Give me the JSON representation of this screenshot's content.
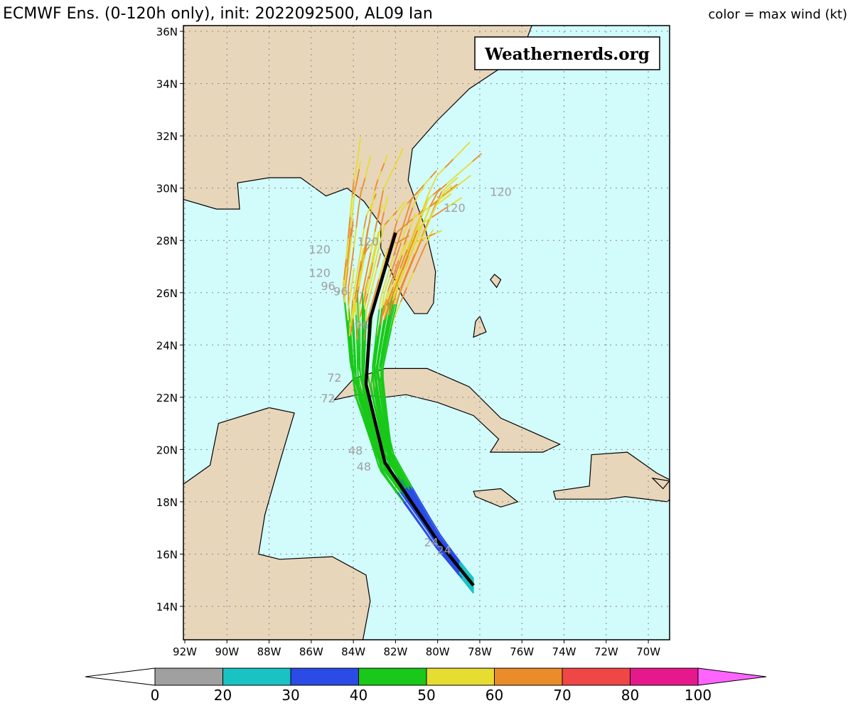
{
  "header": {
    "title": "ECMWF Ens. (0-120h only), init: 2022092500, AL09 Ian",
    "legend_note": "color = max wind (kt)"
  },
  "watermark": "Weathernerds.org",
  "map": {
    "lat_labels": [
      "36N",
      "34N",
      "32N",
      "30N",
      "28N",
      "26N",
      "24N",
      "22N",
      "20N",
      "18N",
      "16N",
      "14N"
    ],
    "lon_labels": [
      "92W",
      "90W",
      "88W",
      "86W",
      "84W",
      "82W",
      "80W",
      "78W",
      "76W",
      "74W",
      "72W",
      "70W"
    ],
    "track_labels": [
      "120",
      "120",
      "120",
      "120",
      "120",
      "96",
      "96",
      "96",
      "72",
      "72",
      "48",
      "48",
      "24",
      "24"
    ]
  },
  "colorbar": {
    "labels": [
      0,
      20,
      30,
      40,
      50,
      60,
      70,
      80,
      100
    ],
    "colors": [
      "#a0a0a0",
      "#19c3c3",
      "#2a4be6",
      "#19c819",
      "#e6dc32",
      "#eb8c2a",
      "#f04646",
      "#e6198c"
    ],
    "low_color": "#ffffff",
    "high_color": "#ff64ff"
  }
}
